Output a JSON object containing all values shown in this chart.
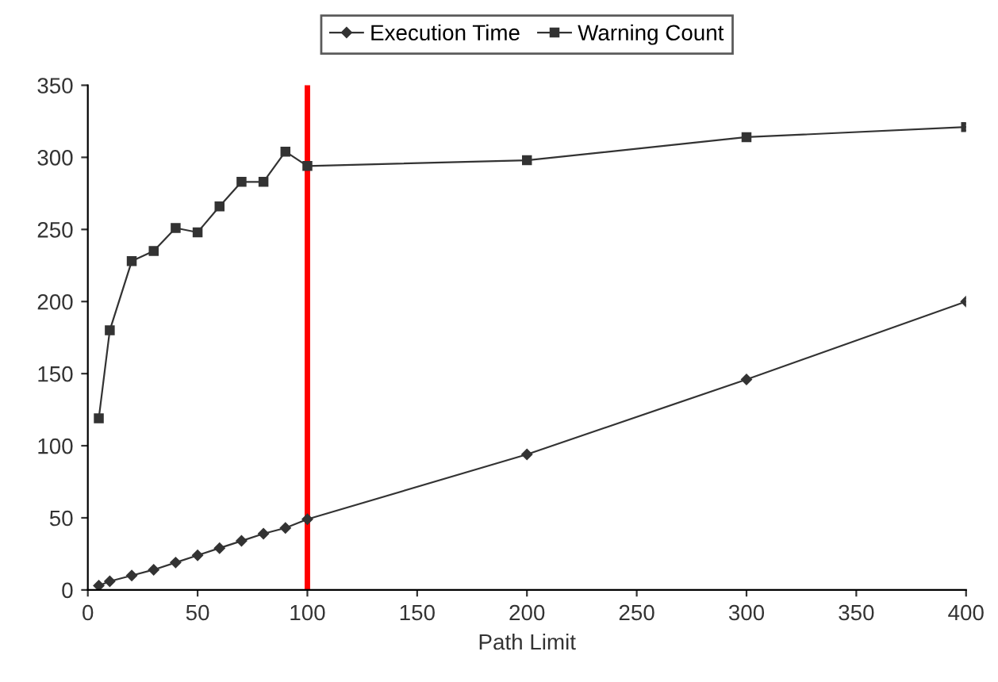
{
  "chart_data": {
    "type": "line",
    "xlabel": "Path Limit",
    "xlim": [
      0,
      400
    ],
    "xticks": [
      0,
      50,
      100,
      150,
      200,
      250,
      300,
      350,
      400
    ],
    "ylim": [
      0,
      350
    ],
    "yticks": [
      0,
      50,
      100,
      150,
      200,
      250,
      300,
      350
    ],
    "grid": false,
    "legend": "top",
    "series": [
      {
        "name": "Execution Time",
        "color": "#333333",
        "marker": "diamond",
        "x": [
          5,
          10,
          20,
          30,
          40,
          50,
          60,
          70,
          80,
          90,
          100,
          200,
          300,
          400
        ],
        "values": [
          3,
          6,
          10,
          14,
          19,
          24,
          29,
          34,
          39,
          43,
          49,
          94,
          146,
          200
        ]
      },
      {
        "name": "Warning Count",
        "color": "#333333",
        "marker": "square",
        "x": [
          5,
          10,
          20,
          30,
          40,
          50,
          60,
          70,
          80,
          90,
          100,
          200,
          300,
          400
        ],
        "values": [
          119,
          180,
          228,
          235,
          251,
          248,
          266,
          283,
          283,
          304,
          294,
          298,
          314,
          321
        ]
      }
    ],
    "ref_lines": [
      {
        "axis": "x",
        "value": 100,
        "color": "#ff0000",
        "line_style": "solid"
      }
    ]
  }
}
